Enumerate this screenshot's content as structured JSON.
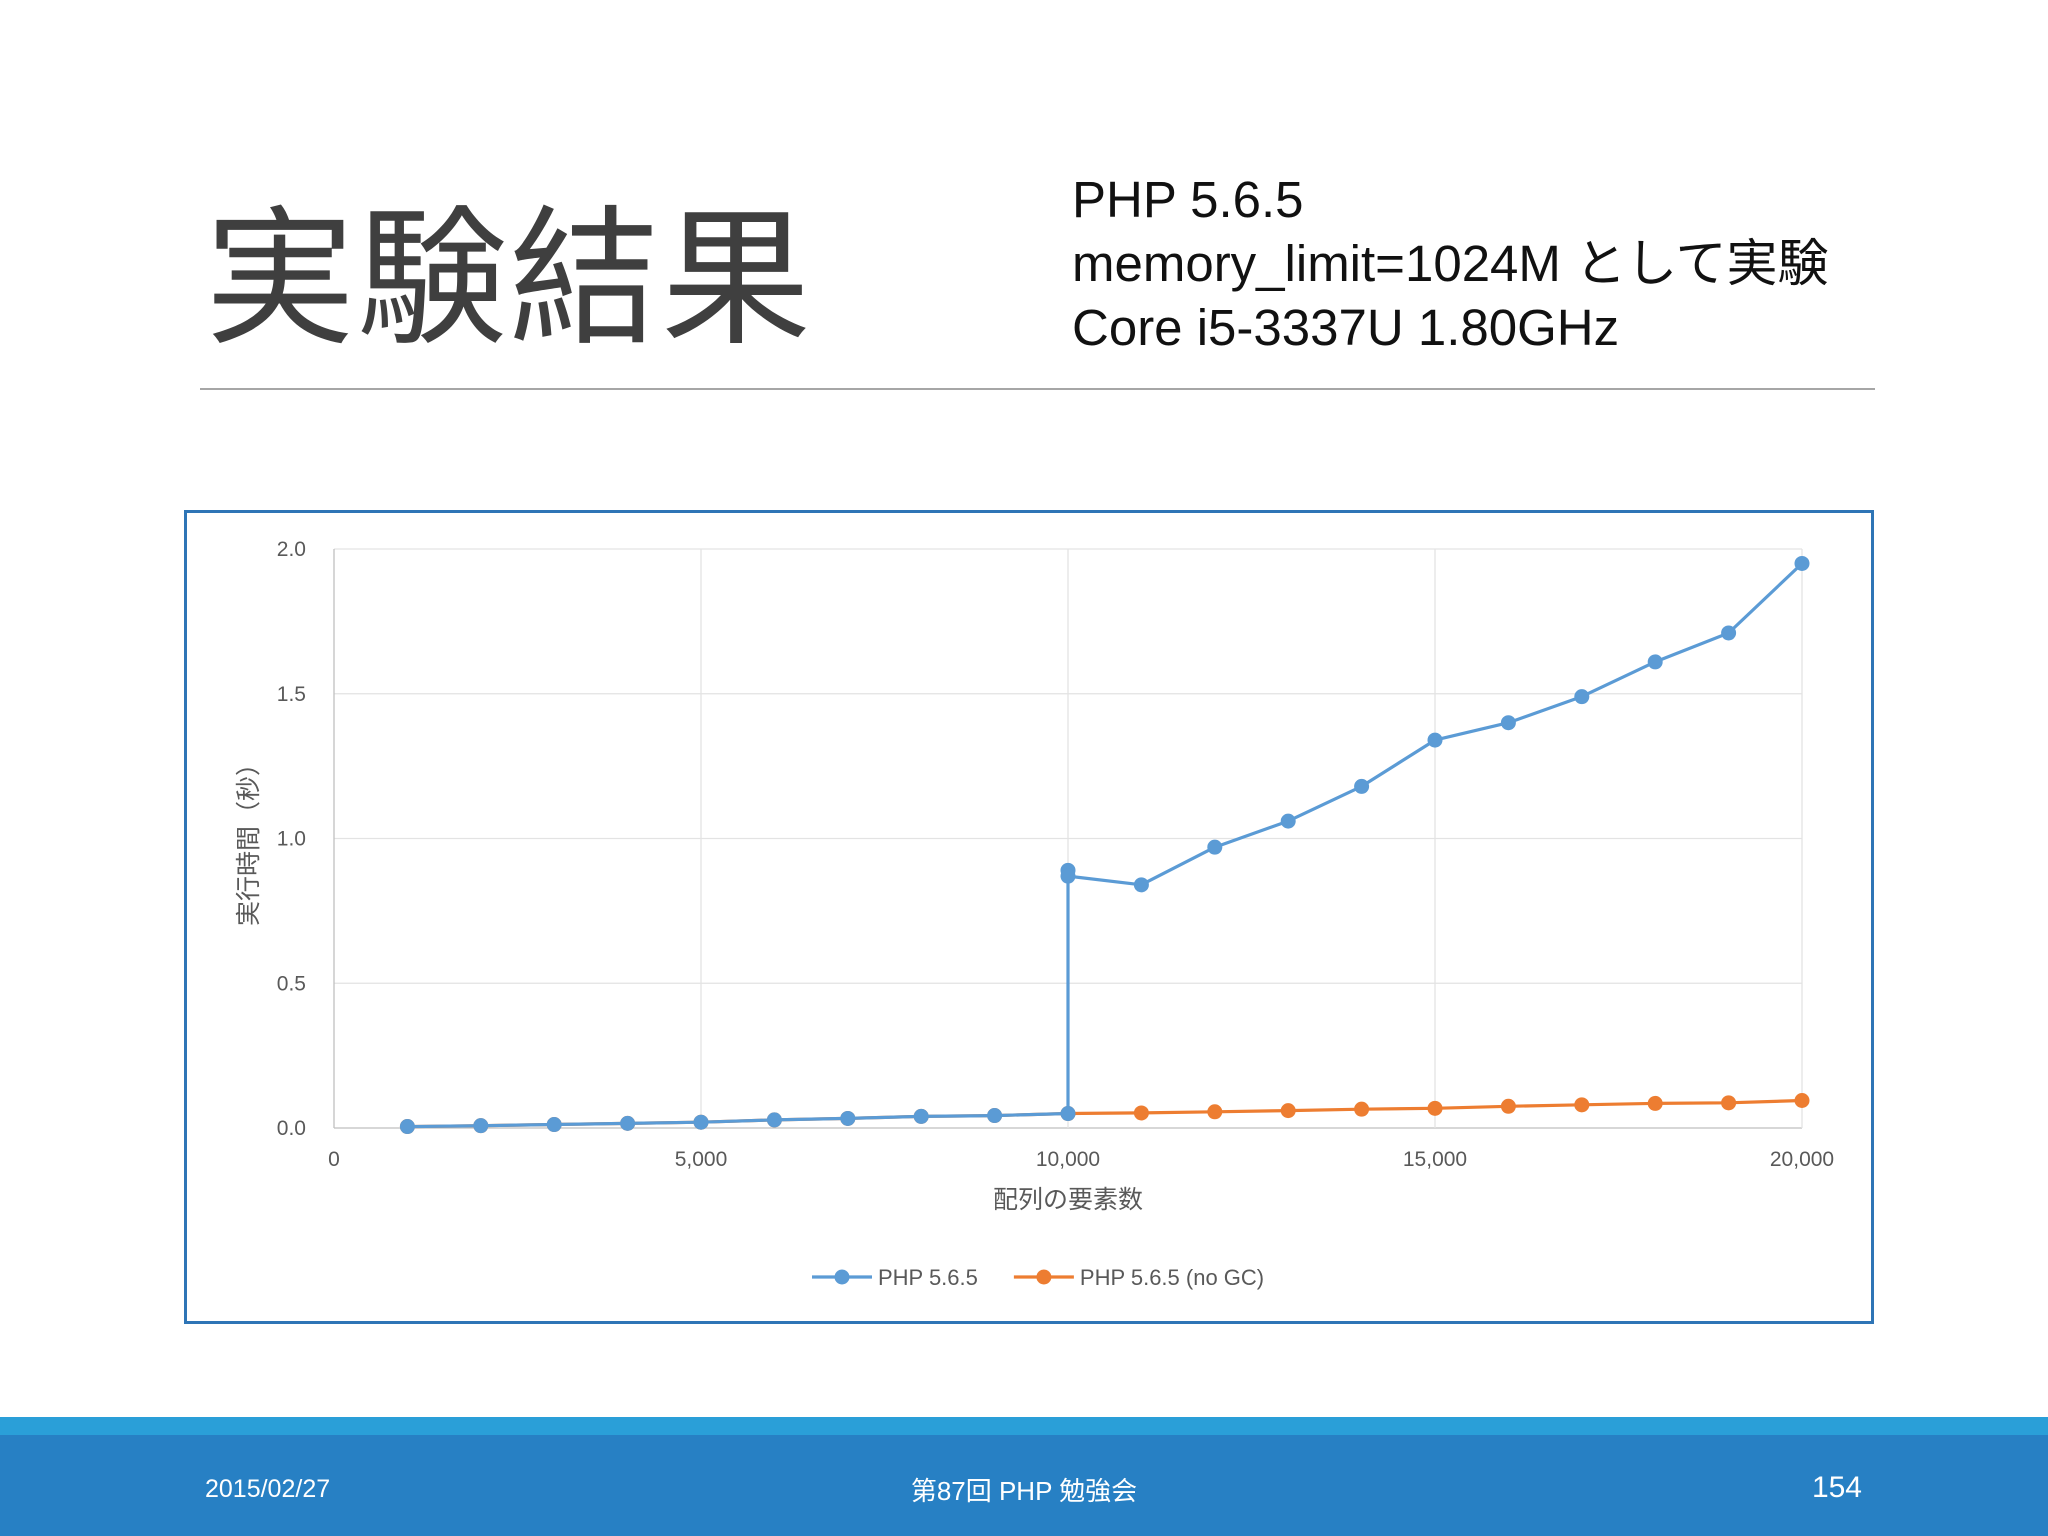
{
  "slide": {
    "title": "実験結果",
    "spec_lines": [
      "PHP 5.6.5",
      "memory_limit=1024M として実験",
      "Core i5-3337U 1.80GHz"
    ]
  },
  "footer": {
    "date": "2015/02/27",
    "event": "第87回 PHP 勉強会",
    "page": "154"
  },
  "colors": {
    "series_blue": "#5b9bd5",
    "series_orange": "#ed7d31",
    "frame": "#2e75b6",
    "footer_bar": "#2780c4",
    "footer_stripe": "#2a9fd8"
  },
  "chart_data": {
    "type": "line",
    "title": "",
    "xlabel": "配列の要素数",
    "ylabel": "実行時間（秒）",
    "xlim": [
      0,
      20000
    ],
    "ylim": [
      0,
      2.0
    ],
    "x_ticks": [
      0,
      5000,
      10000,
      15000,
      20000
    ],
    "x_tick_labels": [
      "0",
      "5,000",
      "10,000",
      "15,000",
      "20,000"
    ],
    "y_ticks": [
      0,
      0.5,
      1.0,
      1.5,
      2.0
    ],
    "y_tick_labels": [
      "0.0",
      "0.5",
      "1.0",
      "1.5",
      "2.0"
    ],
    "grid": true,
    "legend_position": "bottom",
    "series": [
      {
        "name": "PHP 5.6.5",
        "color": "#5b9bd5",
        "x": [
          1000,
          2000,
          3000,
          4000,
          5000,
          6000,
          7000,
          8000,
          9000,
          10000,
          10000,
          10000,
          11000,
          12000,
          13000,
          14000,
          15000,
          16000,
          17000,
          18000,
          19000,
          20000
        ],
        "y": [
          0.005,
          0.008,
          0.012,
          0.016,
          0.02,
          0.028,
          0.033,
          0.04,
          0.043,
          0.05,
          0.89,
          0.87,
          0.84,
          0.97,
          1.06,
          1.18,
          1.34,
          1.4,
          1.49,
          1.61,
          1.71,
          1.95
        ]
      },
      {
        "name": "PHP 5.6.5 (no GC)",
        "color": "#ed7d31",
        "x": [
          1000,
          2000,
          3000,
          4000,
          5000,
          6000,
          7000,
          8000,
          9000,
          10000,
          11000,
          12000,
          13000,
          14000,
          15000,
          16000,
          17000,
          18000,
          19000,
          20000
        ],
        "y": [
          0.005,
          0.008,
          0.012,
          0.016,
          0.02,
          0.028,
          0.033,
          0.04,
          0.043,
          0.05,
          0.052,
          0.056,
          0.06,
          0.065,
          0.068,
          0.075,
          0.08,
          0.085,
          0.087,
          0.095
        ]
      }
    ]
  }
}
